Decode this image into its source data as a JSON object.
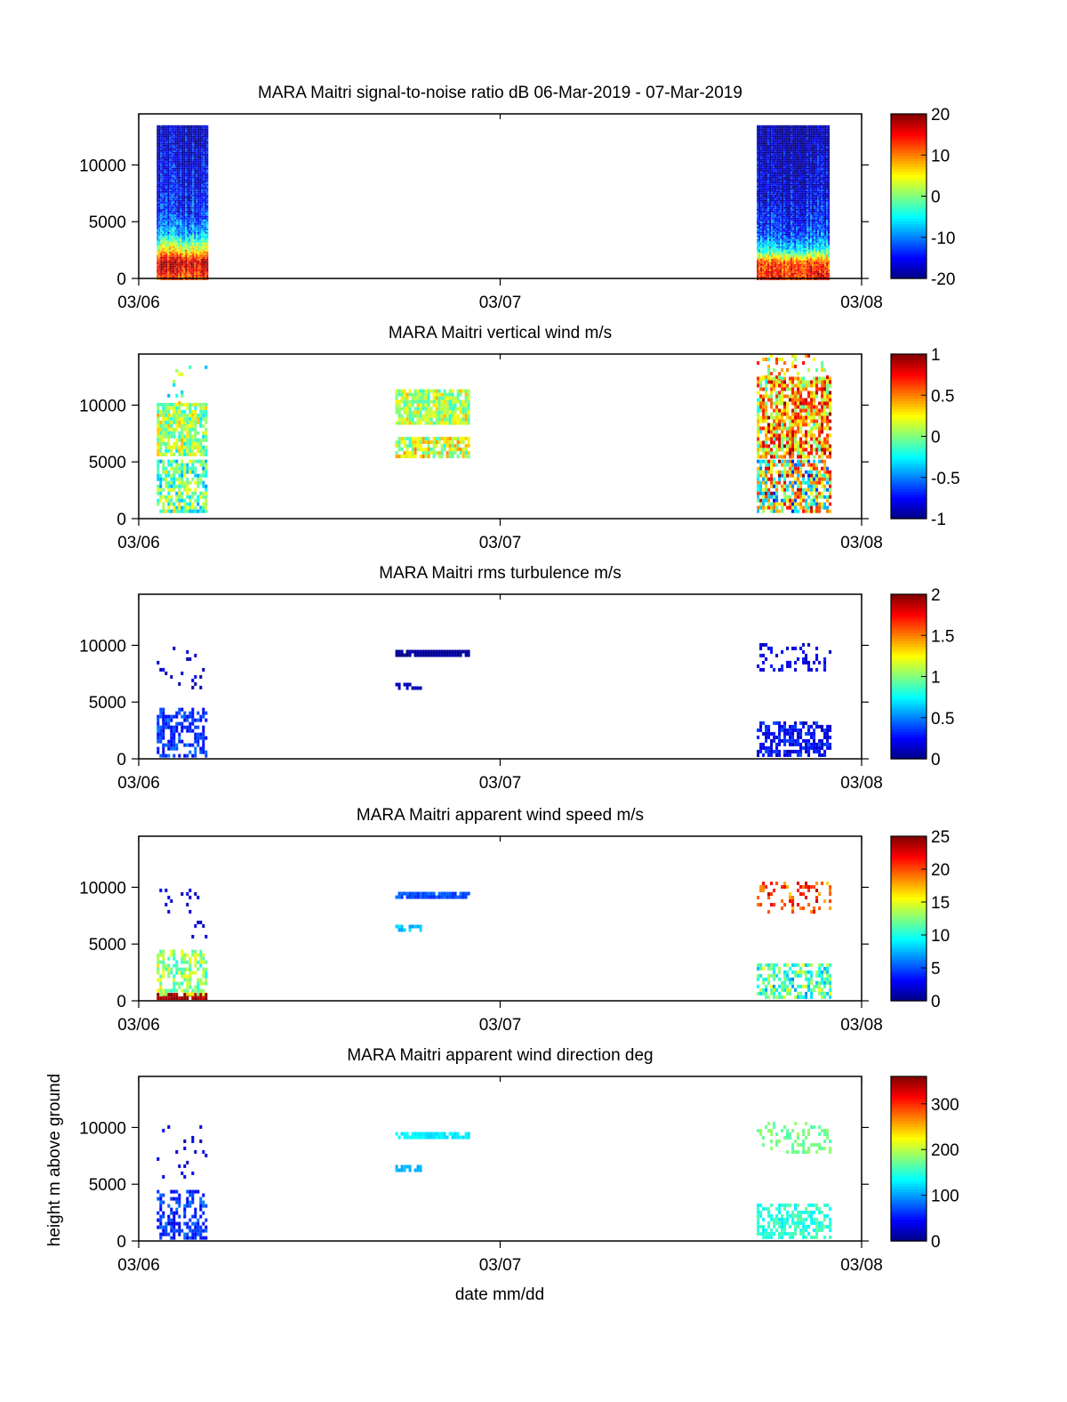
{
  "figure": {
    "xlabel": "date mm/dd",
    "ylabel": "height m above ground"
  },
  "chart_data": [
    {
      "type": "heatmap",
      "title": "MARA Maitri signal-to-noise ratio dB 06-Mar-2019 - 07-Mar-2019",
      "x_ticks": [
        "03/06",
        "03/07",
        "03/08"
      ],
      "y_ticks": [
        0,
        5000,
        10000
      ],
      "ylim": [
        0,
        14500
      ],
      "colorbar": {
        "range": [
          -20,
          20
        ],
        "ticks": [
          -20,
          -10,
          0,
          10,
          20
        ]
      },
      "data_blocks": [
        {
          "t_start": 0.05,
          "t_end": 0.19,
          "h_min": 0,
          "h_max": 13500,
          "profile": [
            [
              0,
              12
            ],
            [
              1500,
              18
            ],
            [
              2500,
              6
            ],
            [
              4000,
              -8
            ],
            [
              6000,
              -14
            ],
            [
              13500,
              -18
            ]
          ]
        },
        {
          "t_start": 1.71,
          "t_end": 1.91,
          "h_min": 0,
          "h_max": 13500,
          "profile": [
            [
              0,
              15
            ],
            [
              1500,
              12
            ],
            [
              2500,
              -4
            ],
            [
              4000,
              -12
            ],
            [
              7000,
              -16
            ],
            [
              13500,
              -19
            ]
          ]
        }
      ]
    },
    {
      "type": "heatmap",
      "title": "MARA Maitri vertical wind  m/s",
      "x_ticks": [
        "03/06",
        "03/07",
        "03/08"
      ],
      "y_ticks": [
        0,
        5000,
        10000
      ],
      "ylim": [
        0,
        14500
      ],
      "colorbar": {
        "range": [
          -1,
          1
        ],
        "ticks": [
          -1,
          -0.5,
          0,
          0.5,
          1
        ]
      },
      "data_blocks": [
        {
          "t_start": 0.05,
          "t_end": 0.19,
          "h_min": 500,
          "h_max": 5200,
          "density": 0.7,
          "base": -0.1,
          "noise": 0.35
        },
        {
          "t_start": 0.05,
          "t_end": 0.19,
          "h_min": 5500,
          "h_max": 10200,
          "density": 0.85,
          "base": 0.05,
          "noise": 0.3
        },
        {
          "t_start": 0.05,
          "t_end": 0.19,
          "h_min": 10200,
          "h_max": 13500,
          "density": 0.05,
          "base": 0.0,
          "noise": 0.4
        },
        {
          "t_start": 0.71,
          "t_end": 0.91,
          "h_min": 5500,
          "h_max": 7200,
          "density": 0.85,
          "base": 0.15,
          "noise": 0.3
        },
        {
          "t_start": 0.71,
          "t_end": 0.91,
          "h_min": 8500,
          "h_max": 11400,
          "density": 0.9,
          "base": 0.1,
          "noise": 0.25
        },
        {
          "t_start": 1.71,
          "t_end": 1.91,
          "h_min": 500,
          "h_max": 5200,
          "density": 0.75,
          "base": 0.1,
          "noise": 0.7
        },
        {
          "t_start": 1.71,
          "t_end": 1.91,
          "h_min": 5500,
          "h_max": 12500,
          "density": 0.8,
          "base": 0.4,
          "noise": 0.5
        },
        {
          "t_start": 1.71,
          "t_end": 1.91,
          "h_min": 12500,
          "h_max": 14500,
          "density": 0.2,
          "base": 0.3,
          "noise": 0.5
        }
      ]
    },
    {
      "type": "heatmap",
      "title": "MARA Maitri rms turbulence m/s",
      "x_ticks": [
        "03/06",
        "03/07",
        "03/08"
      ],
      "y_ticks": [
        0,
        5000,
        10000
      ],
      "ylim": [
        0,
        14500
      ],
      "colorbar": {
        "range": [
          0,
          2
        ],
        "ticks": [
          0,
          0.5,
          1,
          1.5,
          2
        ]
      },
      "data_blocks": [
        {
          "t_start": 0.05,
          "t_end": 0.19,
          "h_min": 400,
          "h_max": 4500,
          "density": 0.55,
          "base": 0.35,
          "noise": 0.15
        },
        {
          "t_start": 0.05,
          "t_end": 0.19,
          "h_min": 5500,
          "h_max": 10200,
          "density": 0.06,
          "base": 0.15,
          "noise": 0.1
        },
        {
          "t_start": 0.71,
          "t_end": 0.91,
          "h_min": 9100,
          "h_max": 9600,
          "density": 0.9,
          "base": 0.05,
          "noise": 0.04
        },
        {
          "t_start": 0.71,
          "t_end": 0.78,
          "h_min": 6200,
          "h_max": 6700,
          "density": 0.5,
          "base": 0.1,
          "noise": 0.05
        },
        {
          "t_start": 1.71,
          "t_end": 1.91,
          "h_min": 400,
          "h_max": 3300,
          "density": 0.6,
          "base": 0.25,
          "noise": 0.15
        },
        {
          "t_start": 1.71,
          "t_end": 1.91,
          "h_min": 7800,
          "h_max": 10200,
          "density": 0.25,
          "base": 0.2,
          "noise": 0.1
        }
      ]
    },
    {
      "type": "heatmap",
      "title": "MARA Maitri apparent wind speed  m/s",
      "x_ticks": [
        "03/06",
        "03/07",
        "03/08"
      ],
      "y_ticks": [
        0,
        5000,
        10000
      ],
      "ylim": [
        0,
        14500
      ],
      "colorbar": {
        "range": [
          0,
          25
        ],
        "ticks": [
          0,
          5,
          10,
          15,
          20,
          25
        ]
      },
      "data_blocks": [
        {
          "t_start": 0.05,
          "t_end": 0.19,
          "h_min": 300,
          "h_max": 700,
          "density": 0.8,
          "base": 24,
          "noise": 1.5
        },
        {
          "t_start": 0.05,
          "t_end": 0.19,
          "h_min": 700,
          "h_max": 4500,
          "density": 0.55,
          "base": 13,
          "noise": 3
        },
        {
          "t_start": 0.05,
          "t_end": 0.19,
          "h_min": 5500,
          "h_max": 10200,
          "density": 0.06,
          "base": 2,
          "noise": 1
        },
        {
          "t_start": 0.71,
          "t_end": 0.91,
          "h_min": 9100,
          "h_max": 9600,
          "density": 0.9,
          "base": 5,
          "noise": 1
        },
        {
          "t_start": 0.71,
          "t_end": 0.78,
          "h_min": 6200,
          "h_max": 6700,
          "density": 0.5,
          "base": 8,
          "noise": 1
        },
        {
          "t_start": 1.71,
          "t_end": 1.91,
          "h_min": 400,
          "h_max": 3300,
          "density": 0.6,
          "base": 11,
          "noise": 4
        },
        {
          "t_start": 1.71,
          "t_end": 1.91,
          "h_min": 7800,
          "h_max": 10500,
          "density": 0.3,
          "base": 20,
          "noise": 3
        }
      ]
    },
    {
      "type": "heatmap",
      "title": "MARA Maitri apparent wind direction  deg",
      "x_ticks": [
        "03/06",
        "03/07",
        "03/08"
      ],
      "y_ticks": [
        0,
        5000,
        10000
      ],
      "ylim": [
        0,
        14500
      ],
      "colorbar": {
        "range": [
          0,
          360
        ],
        "ticks": [
          0,
          100,
          200,
          300
        ]
      },
      "data_blocks": [
        {
          "t_start": 0.05,
          "t_end": 0.19,
          "h_min": 400,
          "h_max": 4500,
          "density": 0.55,
          "base": 60,
          "noise": 25
        },
        {
          "t_start": 0.05,
          "t_end": 0.19,
          "h_min": 5500,
          "h_max": 10200,
          "density": 0.06,
          "base": 30,
          "noise": 15
        },
        {
          "t_start": 0.71,
          "t_end": 0.91,
          "h_min": 9100,
          "h_max": 9600,
          "density": 0.9,
          "base": 130,
          "noise": 10
        },
        {
          "t_start": 0.71,
          "t_end": 0.78,
          "h_min": 6200,
          "h_max": 6700,
          "density": 0.5,
          "base": 110,
          "noise": 8
        },
        {
          "t_start": 1.71,
          "t_end": 1.91,
          "h_min": 400,
          "h_max": 3300,
          "density": 0.6,
          "base": 150,
          "noise": 20
        },
        {
          "t_start": 1.71,
          "t_end": 1.91,
          "h_min": 7800,
          "h_max": 10500,
          "density": 0.3,
          "base": 175,
          "noise": 15
        }
      ]
    }
  ]
}
